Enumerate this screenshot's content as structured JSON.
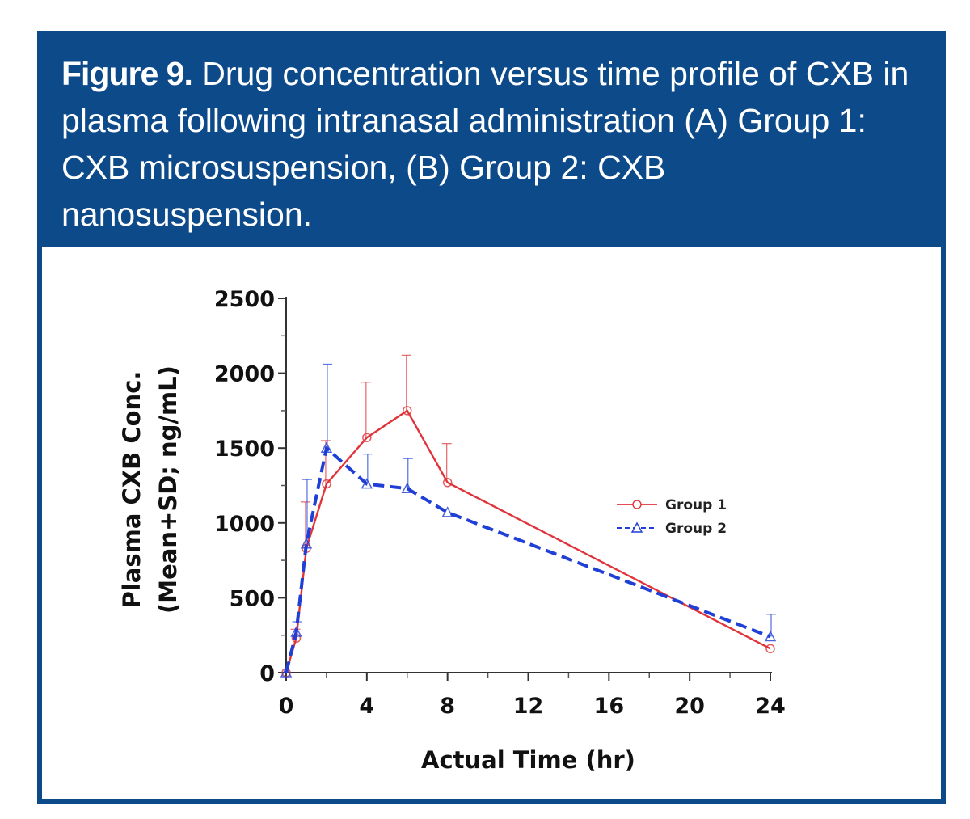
{
  "caption": {
    "label": "Figure 9.",
    "text": " Drug concentration versus time profile of CXB in plasma following intranasal administration (A) Group 1: CXB microsuspension, (B) Group 2: CXB nanosuspension."
  },
  "chart_data": {
    "type": "line",
    "title": "",
    "xlabel": "Actual Time (hr)",
    "ylabel_line1": "Plasma CXB Conc.",
    "ylabel_line2": "(Mean+SD; ng/mL)",
    "xlim": [
      0,
      24
    ],
    "ylim": [
      0,
      2500
    ],
    "xticks": [
      0,
      4,
      8,
      12,
      16,
      20,
      24
    ],
    "yticks": [
      0,
      500,
      1000,
      1500,
      2000,
      2500
    ],
    "grid": false,
    "legend_position": "right",
    "series": [
      {
        "name": "Group 1",
        "color": "#e0343a",
        "marker": "circle",
        "line": "solid",
        "x": [
          0,
          0.5,
          1,
          2,
          4,
          6,
          8,
          24
        ],
        "y": [
          0,
          230,
          830,
          1260,
          1570,
          1750,
          1270,
          160
        ],
        "sd": [
          0,
          60,
          310,
          290,
          370,
          370,
          260,
          0
        ]
      },
      {
        "name": "Group 2",
        "color": "#1f3fd6",
        "marker": "triangle",
        "line": "dashed",
        "x": [
          0,
          0.5,
          1,
          2,
          4,
          6,
          8,
          24
        ],
        "y": [
          0,
          270,
          860,
          1500,
          1260,
          1230,
          1070,
          240
        ],
        "sd": [
          0,
          70,
          430,
          560,
          200,
          200,
          0,
          150
        ]
      }
    ]
  }
}
